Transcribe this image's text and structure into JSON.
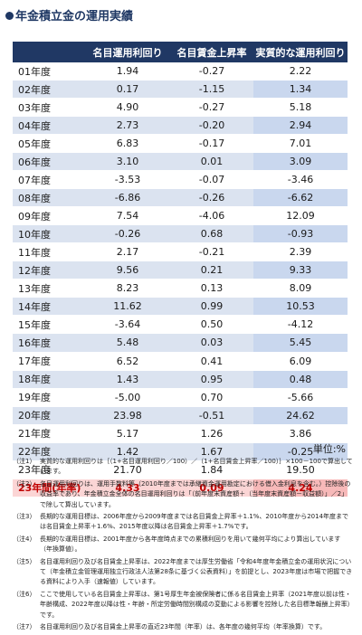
{
  "title": "年金積立金の運用実績",
  "headers": [
    "",
    "名目運用利回り",
    "名目賃金上昇率",
    "実質的な運用利回り"
  ],
  "rows": [
    {
      "year": "01年度",
      "nominal": "1.94",
      "wage": "-0.27",
      "real": "2.22"
    },
    {
      "year": "02年度",
      "nominal": "0.17",
      "wage": "-1.15",
      "real": "1.34"
    },
    {
      "year": "03年度",
      "nominal": "4.90",
      "wage": "-0.27",
      "real": "5.18"
    },
    {
      "year": "04年度",
      "nominal": "2.73",
      "wage": "-0.20",
      "real": "2.94"
    },
    {
      "year": "05年度",
      "nominal": "6.83",
      "wage": "-0.17",
      "real": "7.01"
    },
    {
      "year": "06年度",
      "nominal": "3.10",
      "wage": "0.01",
      "real": "3.09"
    },
    {
      "year": "07年度",
      "nominal": "-3.53",
      "wage": "-0.07",
      "real": "-3.46"
    },
    {
      "year": "08年度",
      "nominal": "-6.86",
      "wage": "-0.26",
      "real": "-6.62"
    },
    {
      "year": "09年度",
      "nominal": "7.54",
      "wage": "-4.06",
      "real": "12.09"
    },
    {
      "year": "10年度",
      "nominal": "-0.26",
      "wage": "0.68",
      "real": "-0.93"
    },
    {
      "year": "11年度",
      "nominal": "2.17",
      "wage": "-0.21",
      "real": "2.39"
    },
    {
      "year": "12年度",
      "nominal": "9.56",
      "wage": "0.21",
      "real": "9.33"
    },
    {
      "year": "13年度",
      "nominal": "8.23",
      "wage": "0.13",
      "real": "8.09"
    },
    {
      "year": "14年度",
      "nominal": "11.62",
      "wage": "0.99",
      "real": "10.53"
    },
    {
      "year": "15年度",
      "nominal": "-3.64",
      "wage": "0.50",
      "real": "-4.12"
    },
    {
      "year": "16年度",
      "nominal": "5.48",
      "wage": "0.03",
      "real": "5.45"
    },
    {
      "year": "17年度",
      "nominal": "6.52",
      "wage": "0.41",
      "real": "6.09"
    },
    {
      "year": "18年度",
      "nominal": "1.43",
      "wage": "0.95",
      "real": "0.48"
    },
    {
      "year": "19年度",
      "nominal": "-5.00",
      "wage": "0.70",
      "real": "-5.66"
    },
    {
      "year": "20年度",
      "nominal": "23.98",
      "wage": "-0.51",
      "real": "24.62"
    },
    {
      "year": "21年度",
      "nominal": "5.17",
      "wage": "1.26",
      "real": "3.86"
    },
    {
      "year": "22年度",
      "nominal": "1.42",
      "wage": "1.67",
      "real": "-0.25"
    },
    {
      "year": "23年度",
      "nominal": "21.70",
      "wage": "1.84",
      "real": "19.50"
    }
  ],
  "total": {
    "year": "23年間(年率)",
    "nominal": "4.33",
    "wage": "0.09",
    "real": "4.24"
  },
  "unit": "単位:%",
  "notes": [
    {
      "label": "（注1）",
      "text": "実質的な運用利回りは｛（1+名目運用利回り／100）／（1+名目賃金上昇率／100）｝×100－100で算出しています。"
    },
    {
      "label": "（注2）",
      "text": "名目運用利回りは、運用手数料等（2010年度までは承継資金運用勘定における借入金利息を含む。）控除後の収益率であり、年金積立金全体の名目運用利回りは「（前年度末資産額＋（当年度末資産額－収益額）」／2」で除して算出しています。"
    },
    {
      "label": "（注3）",
      "text": "長期的な運用目標は、2006年度から2009年度までは名目賃金上昇率＋1.1%、2010年度から2014年度までは名目賃金上昇率＋1.6%、2015年度以降は名目賃金上昇率＋1.7%です。"
    },
    {
      "label": "（注4）",
      "text": "長期的な運用目標は、2001年度から各年度時点までの累積利回りを用いて幾何平均により算出しています（年換算値）。"
    },
    {
      "label": "（注5）",
      "text": "名目運用利回り及び名目賃金上昇率は、2022年度までは厚生労働省「令和4年度年金積立金の運用状況について（年金積立金管理運用独立行政法人法第28条に基づく公表資料）」を前提とし、2023年度は市場で把握できる資料により入手（速報値）しています。"
    },
    {
      "label": "（注6）",
      "text": "ここで使用している名目賃金上昇率は、第1号厚生年金被保険者に係る名目賃金上昇率（2021年度以前は性・年齢構成、2022年度以降は性・年齢・所定労働時間別構成の変動による影響を控除した名目標準報酬上昇率）です。"
    },
    {
      "label": "（注7）",
      "text": "名目運用利回り及び名目賃金上昇率の直近23年間（年率）は、各年度の幾何平均（年率換算）です。"
    }
  ],
  "colors": {
    "header_bg": "#203864",
    "stripe": "#dbe3f0",
    "highlight": "#c9d7ee",
    "total_bg": "#fbd5d5",
    "total_text": "#c00000"
  }
}
